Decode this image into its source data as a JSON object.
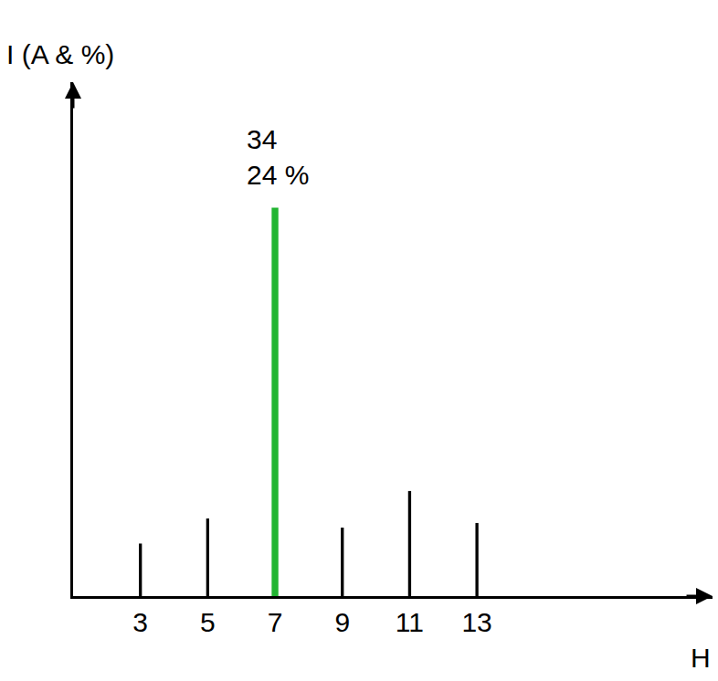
{
  "chart_data": {
    "type": "bar",
    "y_label": "I (A & %)",
    "x_label": "H",
    "x": [
      3,
      5,
      7,
      9,
      11,
      13
    ],
    "values": [
      4.6,
      6.8,
      34,
      6.0,
      9.2,
      6.4
    ],
    "colors": [
      "#000000",
      "#000000",
      "#22b532",
      "#000000",
      "#000000",
      "#000000"
    ],
    "xlim": [
      1,
      20
    ],
    "xticks": [
      3,
      5,
      7,
      9,
      11,
      13
    ],
    "ylim": [
      0,
      45
    ],
    "tick_labels": "x",
    "grid": false,
    "annotations": [
      {
        "x": 7,
        "y": 34,
        "text": [
          "34",
          "24 %"
        ]
      }
    ]
  }
}
